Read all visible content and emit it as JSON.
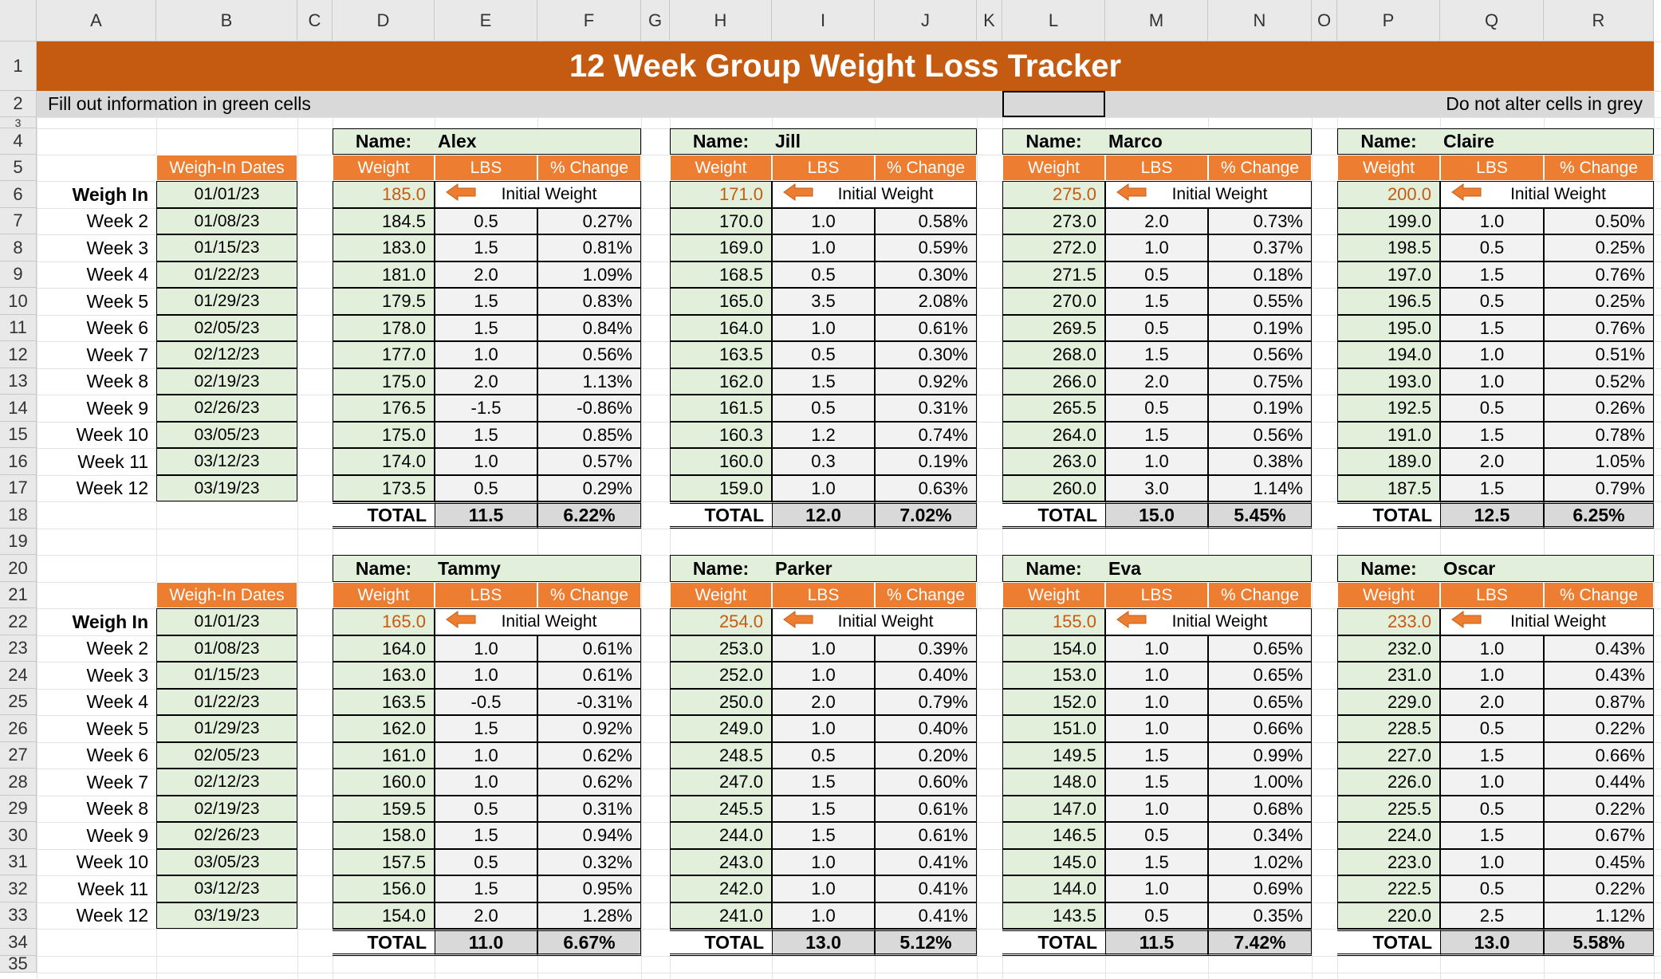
{
  "column_headers": [
    "A",
    "B",
    "C",
    "D",
    "E",
    "F",
    "G",
    "H",
    "I",
    "J",
    "K",
    "L",
    "M",
    "N",
    "O",
    "P",
    "Q",
    "R"
  ],
  "row_headers": [
    "1",
    "2",
    "3",
    "4",
    "5",
    "6",
    "7",
    "8",
    "9",
    "10",
    "11",
    "12",
    "13",
    "14",
    "15",
    "16",
    "17",
    "18",
    "19",
    "20",
    "21",
    "22",
    "23",
    "24",
    "25",
    "26",
    "27",
    "28",
    "29",
    "30",
    "31",
    "32",
    "33",
    "34",
    "35"
  ],
  "title": "12 Week Group Weight Loss Tracker",
  "instructions_left": "Fill out information in green cells",
  "instructions_right": "Do not alter cells in grey",
  "labels": {
    "name": "Name:",
    "weigh_in_dates": "Weigh-In Dates",
    "weight": "Weight",
    "lbs": "LBS",
    "pct_change": "% Change",
    "initial_weight": "Initial Weight",
    "total": "TOTAL"
  },
  "accent_colors": {
    "title_band": "#c55a11",
    "header_orange": "#ed7d31",
    "input_green": "#e2efda",
    "calc_grey": "#d9d9d9"
  },
  "icons": {
    "initial_arrow": "left-arrow-icon"
  },
  "week_labels": [
    "Weigh In",
    "Week 2",
    "Week 3",
    "Week 4",
    "Week 5",
    "Week 6",
    "Week 7",
    "Week 8",
    "Week 9",
    "Week 10",
    "Week 11",
    "Week 12"
  ],
  "dates": [
    "01/01/23",
    "01/08/23",
    "01/15/23",
    "01/22/23",
    "01/29/23",
    "02/05/23",
    "02/12/23",
    "02/19/23",
    "02/26/23",
    "03/05/23",
    "03/12/23",
    "03/19/23"
  ],
  "groups": [
    {
      "people": [
        {
          "name": "Alex",
          "weights": [
            "185.0",
            "184.5",
            "183.0",
            "181.0",
            "179.5",
            "178.0",
            "177.0",
            "175.0",
            "176.5",
            "175.0",
            "174.0",
            "173.5"
          ],
          "lbs": [
            "0.5",
            "1.5",
            "2.0",
            "1.5",
            "1.5",
            "1.0",
            "2.0",
            "-1.5",
            "1.5",
            "1.0",
            "0.5"
          ],
          "pct": [
            "0.27%",
            "0.81%",
            "1.09%",
            "0.83%",
            "0.84%",
            "0.56%",
            "1.13%",
            "-0.86%",
            "0.85%",
            "0.57%",
            "0.29%"
          ],
          "total_lbs": "11.5",
          "total_pct": "6.22%"
        },
        {
          "name": "Jill",
          "weights": [
            "171.0",
            "170.0",
            "169.0",
            "168.5",
            "165.0",
            "164.0",
            "163.5",
            "162.0",
            "161.5",
            "160.3",
            "160.0",
            "159.0"
          ],
          "lbs": [
            "1.0",
            "1.0",
            "0.5",
            "3.5",
            "1.0",
            "0.5",
            "1.5",
            "0.5",
            "1.2",
            "0.3",
            "1.0"
          ],
          "pct": [
            "0.58%",
            "0.59%",
            "0.30%",
            "2.08%",
            "0.61%",
            "0.30%",
            "0.92%",
            "0.31%",
            "0.74%",
            "0.19%",
            "0.63%"
          ],
          "total_lbs": "12.0",
          "total_pct": "7.02%"
        },
        {
          "name": "Marco",
          "weights": [
            "275.0",
            "273.0",
            "272.0",
            "271.5",
            "270.0",
            "269.5",
            "268.0",
            "266.0",
            "265.5",
            "264.0",
            "263.0",
            "260.0"
          ],
          "lbs": [
            "2.0",
            "1.0",
            "0.5",
            "1.5",
            "0.5",
            "1.5",
            "2.0",
            "0.5",
            "1.5",
            "1.0",
            "3.0"
          ],
          "pct": [
            "0.73%",
            "0.37%",
            "0.18%",
            "0.55%",
            "0.19%",
            "0.56%",
            "0.75%",
            "0.19%",
            "0.56%",
            "0.38%",
            "1.14%"
          ],
          "total_lbs": "15.0",
          "total_pct": "5.45%"
        },
        {
          "name": "Claire",
          "weights": [
            "200.0",
            "199.0",
            "198.5",
            "197.0",
            "196.5",
            "195.0",
            "194.0",
            "193.0",
            "192.5",
            "191.0",
            "189.0",
            "187.5"
          ],
          "lbs": [
            "1.0",
            "0.5",
            "1.5",
            "0.5",
            "1.5",
            "1.0",
            "1.0",
            "0.5",
            "1.5",
            "2.0",
            "1.5"
          ],
          "pct": [
            "0.50%",
            "0.25%",
            "0.76%",
            "0.25%",
            "0.76%",
            "0.51%",
            "0.52%",
            "0.26%",
            "0.78%",
            "1.05%",
            "0.79%"
          ],
          "total_lbs": "12.5",
          "total_pct": "6.25%"
        }
      ]
    },
    {
      "people": [
        {
          "name": "Tammy",
          "weights": [
            "165.0",
            "164.0",
            "163.0",
            "163.5",
            "162.0",
            "161.0",
            "160.0",
            "159.5",
            "158.0",
            "157.5",
            "156.0",
            "154.0"
          ],
          "lbs": [
            "1.0",
            "1.0",
            "-0.5",
            "1.5",
            "1.0",
            "1.0",
            "0.5",
            "1.5",
            "0.5",
            "1.5",
            "2.0"
          ],
          "pct": [
            "0.61%",
            "0.61%",
            "-0.31%",
            "0.92%",
            "0.62%",
            "0.62%",
            "0.31%",
            "0.94%",
            "0.32%",
            "0.95%",
            "1.28%"
          ],
          "total_lbs": "11.0",
          "total_pct": "6.67%"
        },
        {
          "name": "Parker",
          "weights": [
            "254.0",
            "253.0",
            "252.0",
            "250.0",
            "249.0",
            "248.5",
            "247.0",
            "245.5",
            "244.0",
            "243.0",
            "242.0",
            "241.0"
          ],
          "lbs": [
            "1.0",
            "1.0",
            "2.0",
            "1.0",
            "0.5",
            "1.5",
            "1.5",
            "1.5",
            "1.0",
            "1.0",
            "1.0"
          ],
          "pct": [
            "0.39%",
            "0.40%",
            "0.79%",
            "0.40%",
            "0.20%",
            "0.60%",
            "0.61%",
            "0.61%",
            "0.41%",
            "0.41%",
            "0.41%"
          ],
          "total_lbs": "13.0",
          "total_pct": "5.12%"
        },
        {
          "name": "Eva",
          "weights": [
            "155.0",
            "154.0",
            "153.0",
            "152.0",
            "151.0",
            "149.5",
            "148.0",
            "147.0",
            "146.5",
            "145.0",
            "144.0",
            "143.5"
          ],
          "lbs": [
            "1.0",
            "1.0",
            "1.0",
            "1.0",
            "1.5",
            "1.5",
            "1.0",
            "0.5",
            "1.5",
            "1.0",
            "0.5"
          ],
          "pct": [
            "0.65%",
            "0.65%",
            "0.65%",
            "0.66%",
            "0.99%",
            "1.00%",
            "0.68%",
            "0.34%",
            "1.02%",
            "0.69%",
            "0.35%"
          ],
          "total_lbs": "11.5",
          "total_pct": "7.42%"
        },
        {
          "name": "Oscar",
          "weights": [
            "233.0",
            "232.0",
            "231.0",
            "229.0",
            "228.5",
            "227.0",
            "226.0",
            "225.5",
            "224.0",
            "223.0",
            "222.5",
            "220.0"
          ],
          "lbs": [
            "1.0",
            "1.0",
            "2.0",
            "0.5",
            "1.5",
            "1.0",
            "0.5",
            "1.5",
            "1.0",
            "0.5",
            "2.5"
          ],
          "pct": [
            "0.43%",
            "0.43%",
            "0.87%",
            "0.22%",
            "0.66%",
            "0.44%",
            "0.22%",
            "0.67%",
            "0.45%",
            "0.22%",
            "1.12%"
          ],
          "total_lbs": "13.0",
          "total_pct": "5.58%"
        }
      ]
    }
  ]
}
